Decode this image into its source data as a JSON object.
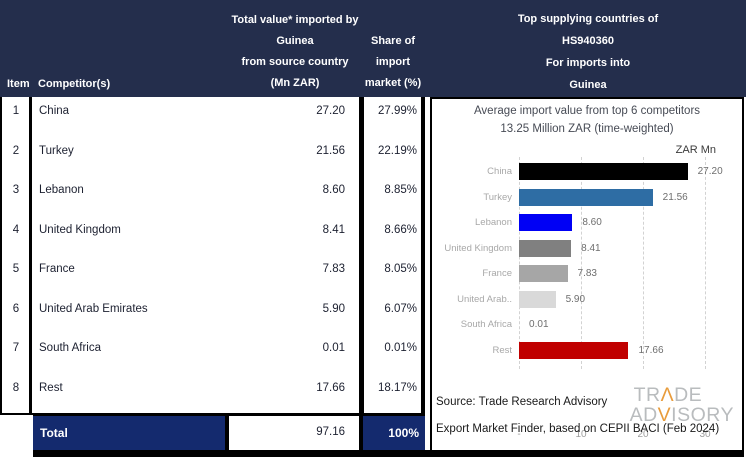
{
  "table": {
    "headers": {
      "item": "Item",
      "competitor": "Competitor(s)",
      "value_lines": [
        "Total value* imported by",
        "Guinea",
        "from source country",
        "(Mn ZAR)"
      ],
      "share_lines": [
        "Share of",
        "import",
        "market (%)"
      ]
    },
    "rows": [
      {
        "item": "1",
        "competitor": "China",
        "value": "27.20",
        "share": "27.99%"
      },
      {
        "item": "2",
        "competitor": "Turkey",
        "value": "21.56",
        "share": "22.19%"
      },
      {
        "item": "3",
        "competitor": "Lebanon",
        "value": "8.60",
        "share": "8.85%"
      },
      {
        "item": "4",
        "competitor": "United Kingdom",
        "value": "8.41",
        "share": "8.66%"
      },
      {
        "item": "5",
        "competitor": "France",
        "value": "7.83",
        "share": "8.05%"
      },
      {
        "item": "6",
        "competitor": "United Arab Emirates",
        "value": "5.90",
        "share": "6.07%"
      },
      {
        "item": "7",
        "competitor": "South Africa",
        "value": "0.01",
        "share": "0.01%"
      },
      {
        "item": "8",
        "competitor": "Rest",
        "value": "17.66",
        "share": "18.17%"
      }
    ],
    "total": {
      "label": "Total",
      "value": "97.16",
      "share": "100%"
    }
  },
  "right_panel": {
    "header_lines": [
      "Top supplying countries of",
      "HS940360",
      "For imports into",
      "Guinea"
    ],
    "source_line1": "Source: Trade Research Advisory",
    "source_line2": "Export Market Finder, based on CEPII BACI (Feb 2024)",
    "logo": {
      "t1": "TR",
      "t2": "Λ",
      "t3": "DE",
      "a1": "AD",
      "a2": "V",
      "a3": "ISORY"
    }
  },
  "chart_data": {
    "type": "bar",
    "orientation": "horizontal",
    "title": "Average import value from top 6 competitors",
    "subtitle": "13.25 Million ZAR (time-weighted)",
    "xlabel": "ZAR Mn",
    "categories": [
      "China",
      "Turkey",
      "Lebanon",
      "United Kingdom",
      "France",
      "United Arab..",
      "South Africa",
      "Rest"
    ],
    "values": [
      27.2,
      21.56,
      8.6,
      8.41,
      7.83,
      5.9,
      0.01,
      17.66
    ],
    "value_labels": [
      "27.20",
      "21.56",
      "8.60",
      "8.41",
      "7.83",
      "5.90",
      "0.01",
      "17.66"
    ],
    "bar_colors": [
      "#000000",
      "#2E6DA4",
      "#0000F5",
      "#808080",
      "#A6A6A6",
      "#D9D9D9",
      "#D9D9D9",
      "#C00000"
    ],
    "xlim": [
      0,
      30
    ],
    "xticks": [
      "-",
      "10",
      "20",
      "30"
    ],
    "xtick_values": [
      0,
      10,
      20,
      30
    ],
    "grid": "dashed-vertical",
    "legend": false
  },
  "colors": {
    "header_navy": "#242E4C",
    "total_navy": "#142A6E",
    "rest_red": "#C00000",
    "lebanon_blue": "#0000F5",
    "turkey_blue": "#2E6DA4",
    "logo_orange": "#E89C3C"
  }
}
